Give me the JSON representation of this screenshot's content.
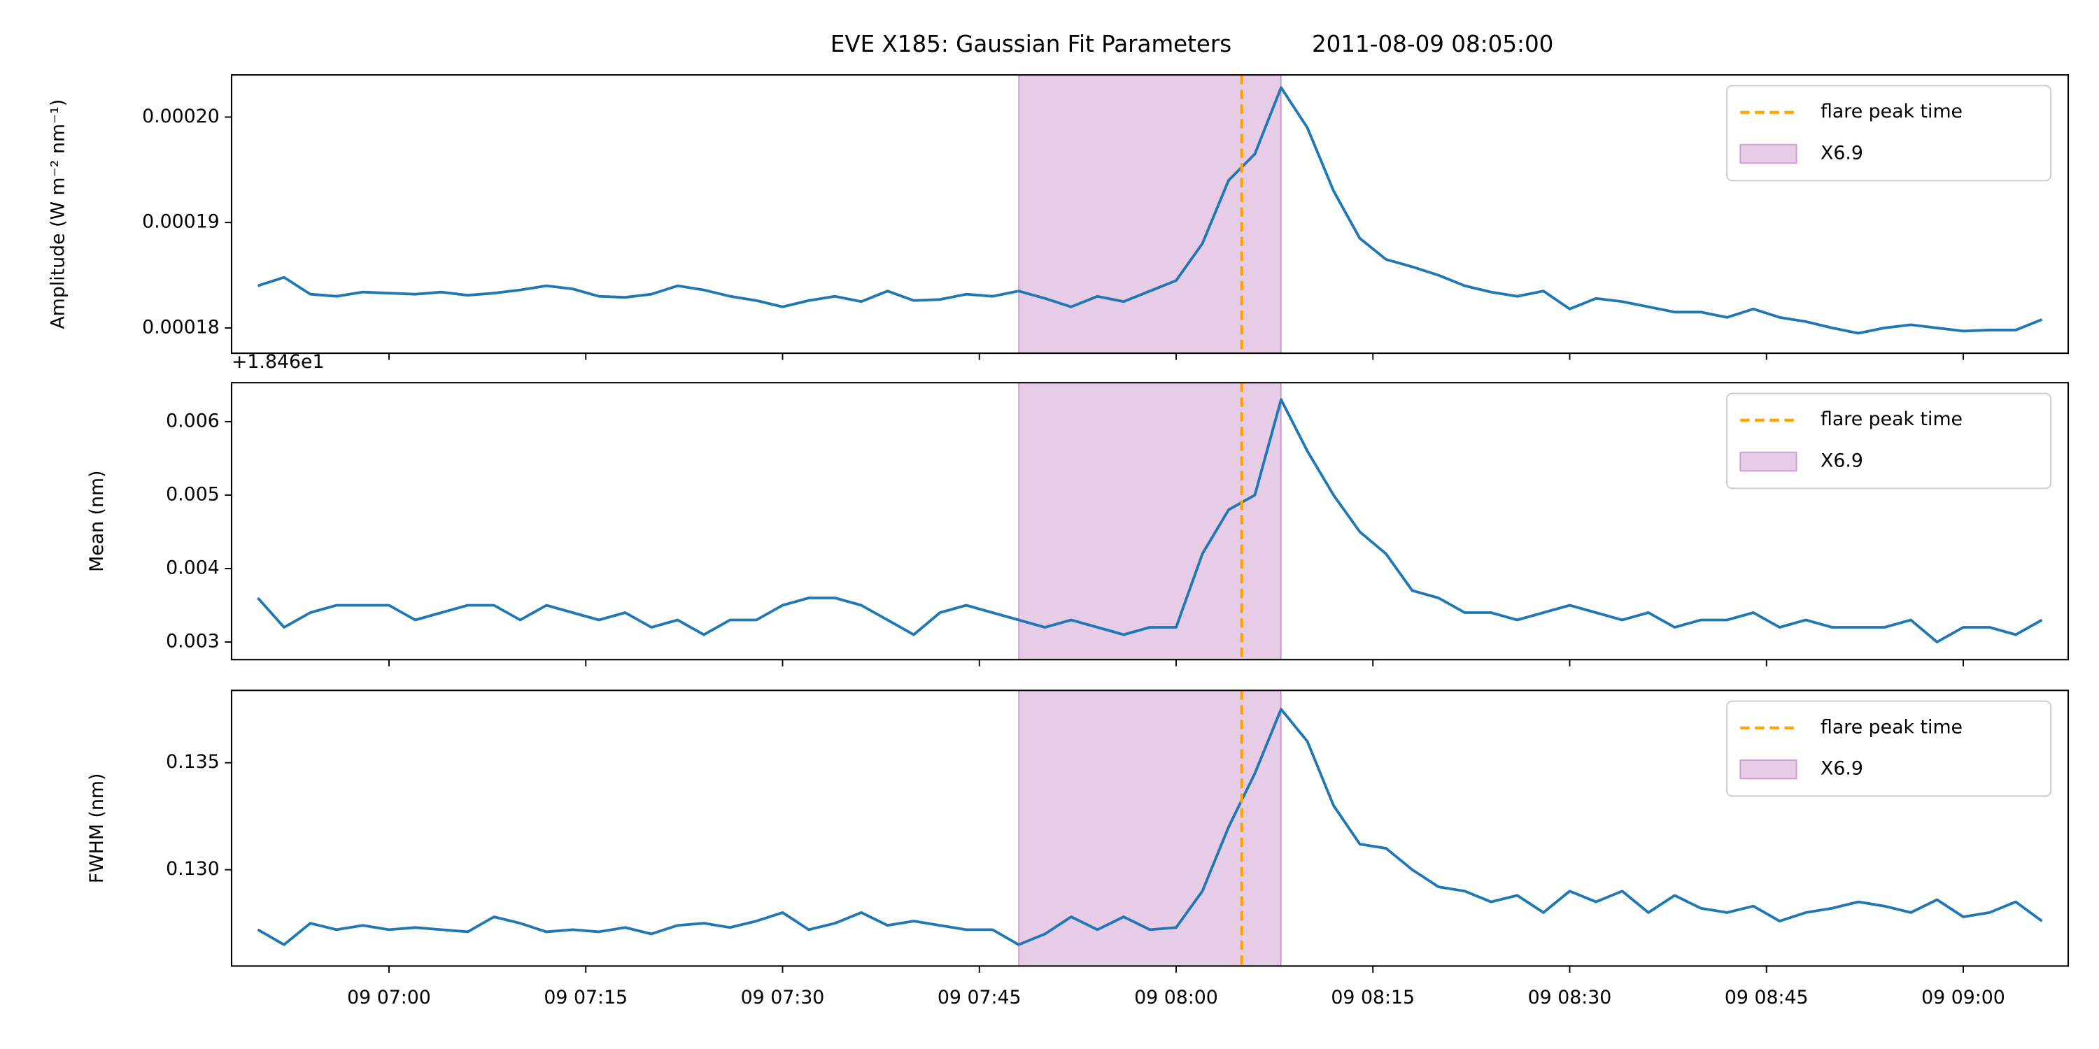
{
  "chart_data": [
    {
      "type": "line",
      "title": "EVE X185: Gaussian Fit Parameters",
      "subtitle": "2011-08-09 08:05:00",
      "ylabel": "Amplitude (W m⁻² nm⁻¹)",
      "x": [
        "09 06:50",
        "09 06:52",
        "09 06:54",
        "09 06:56",
        "09 06:58",
        "09 07:00",
        "09 07:02",
        "09 07:04",
        "09 07:06",
        "09 07:08",
        "09 07:10",
        "09 07:12",
        "09 07:14",
        "09 07:16",
        "09 07:18",
        "09 07:20",
        "09 07:22",
        "09 07:24",
        "09 07:26",
        "09 07:28",
        "09 07:30",
        "09 07:32",
        "09 07:34",
        "09 07:36",
        "09 07:38",
        "09 07:40",
        "09 07:42",
        "09 07:44",
        "09 07:46",
        "09 07:48",
        "09 07:50",
        "09 07:52",
        "09 07:54",
        "09 07:56",
        "09 07:58",
        "09 08:00",
        "09 08:02",
        "09 08:04",
        "09 08:06",
        "09 08:08",
        "09 08:10",
        "09 08:12",
        "09 08:14",
        "09 08:16",
        "09 08:18",
        "09 08:20",
        "09 08:22",
        "09 08:24",
        "09 08:26",
        "09 08:28",
        "09 08:30",
        "09 08:32",
        "09 08:34",
        "09 08:36",
        "09 08:38",
        "09 08:40",
        "09 08:42",
        "09 08:44",
        "09 08:46",
        "09 08:48",
        "09 08:50",
        "09 08:52",
        "09 08:54",
        "09 08:56",
        "09 08:58",
        "09 09:00",
        "09 09:02",
        "09 09:04",
        "09 09:06"
      ],
      "series": [
        {
          "color": "#1f77b4",
          "values": [
            0.000184,
            0.0001848,
            0.0001832,
            0.000183,
            0.0001834,
            0.0001833,
            0.0001832,
            0.0001834,
            0.0001831,
            0.0001833,
            0.0001836,
            0.000184,
            0.0001837,
            0.000183,
            0.0001829,
            0.0001832,
            0.000184,
            0.0001836,
            0.000183,
            0.0001826,
            0.000182,
            0.0001826,
            0.000183,
            0.0001825,
            0.0001835,
            0.0001826,
            0.0001827,
            0.0001832,
            0.000183,
            0.0001835,
            0.0001828,
            0.000182,
            0.000183,
            0.0001825,
            0.0001835,
            0.0001845,
            0.000188,
            0.000194,
            0.0001965,
            0.0002028,
            0.000199,
            0.000193,
            0.0001885,
            0.0001865,
            0.0001858,
            0.000185,
            0.000184,
            0.0001834,
            0.000183,
            0.0001835,
            0.0001818,
            0.0001828,
            0.0001825,
            0.000182,
            0.0001815,
            0.0001815,
            0.000181,
            0.0001818,
            0.000181,
            0.0001806,
            0.00018,
            0.0001795,
            0.00018,
            0.0001803,
            0.00018,
            0.0001797,
            0.0001798,
            0.0001798,
            0.0001808
          ]
        }
      ],
      "vline": {
        "x": "09 08:05",
        "label": "flare peak time",
        "color": "orange"
      },
      "span": {
        "start": "09 07:48",
        "end": "09 08:08",
        "label": "X6.9",
        "color": "purple",
        "alpha": 0.2
      },
      "xlim": [
        "09 06:48",
        "09 09:08"
      ],
      "ylim": [
        0.0001776,
        0.000204
      ],
      "yticks": [
        0.00018,
        0.00019,
        {
          "value": 0.0002,
          "label": "0.00020"
        }
      ],
      "legend": "upper right"
    },
    {
      "type": "line",
      "ylabel": "Mean (nm)",
      "offset_label": "+1.846e1",
      "x": [
        "09 06:50",
        "09 06:52",
        "09 06:54",
        "09 06:56",
        "09 06:58",
        "09 07:00",
        "09 07:02",
        "09 07:04",
        "09 07:06",
        "09 07:08",
        "09 07:10",
        "09 07:12",
        "09 07:14",
        "09 07:16",
        "09 07:18",
        "09 07:20",
        "09 07:22",
        "09 07:24",
        "09 07:26",
        "09 07:28",
        "09 07:30",
        "09 07:32",
        "09 07:34",
        "09 07:36",
        "09 07:38",
        "09 07:40",
        "09 07:42",
        "09 07:44",
        "09 07:46",
        "09 07:48",
        "09 07:50",
        "09 07:52",
        "09 07:54",
        "09 07:56",
        "09 07:58",
        "09 08:00",
        "09 08:02",
        "09 08:04",
        "09 08:06",
        "09 08:08",
        "09 08:10",
        "09 08:12",
        "09 08:14",
        "09 08:16",
        "09 08:18",
        "09 08:20",
        "09 08:22",
        "09 08:24",
        "09 08:26",
        "09 08:28",
        "09 08:30",
        "09 08:32",
        "09 08:34",
        "09 08:36",
        "09 08:38",
        "09 08:40",
        "09 08:42",
        "09 08:44",
        "09 08:46",
        "09 08:48",
        "09 08:50",
        "09 08:52",
        "09 08:54",
        "09 08:56",
        "09 08:58",
        "09 09:00",
        "09 09:02",
        "09 09:04",
        "09 09:06"
      ],
      "series": [
        {
          "color": "#1f77b4",
          "values": [
            0.0036,
            0.0032,
            0.0034,
            0.0035,
            0.0035,
            0.0035,
            0.0033,
            0.0034,
            0.0035,
            0.0035,
            0.0033,
            0.0035,
            0.0034,
            0.0033,
            0.0034,
            0.0032,
            0.0033,
            0.0031,
            0.0033,
            0.0033,
            0.0035,
            0.0036,
            0.0036,
            0.0035,
            0.0033,
            0.0031,
            0.0034,
            0.0035,
            0.0034,
            0.0033,
            0.0032,
            0.0033,
            0.0032,
            0.0031,
            0.0032,
            0.0032,
            0.0042,
            0.0048,
            0.005,
            0.0063,
            0.0056,
            0.005,
            0.0045,
            0.0042,
            0.0037,
            0.0036,
            0.0034,
            0.0034,
            0.0033,
            0.0034,
            0.0035,
            0.0034,
            0.0033,
            0.0034,
            0.0032,
            0.0033,
            0.0033,
            0.0034,
            0.0032,
            0.0033,
            0.0032,
            0.0032,
            0.0032,
            0.0033,
            0.003,
            0.0032,
            0.0032,
            0.0031,
            0.0033
          ]
        }
      ],
      "vline": {
        "x": "09 08:05",
        "label": "flare peak time",
        "color": "orange"
      },
      "span": {
        "start": "09 07:48",
        "end": "09 08:08",
        "label": "X6.9",
        "color": "purple",
        "alpha": 0.2
      },
      "xlim": [
        "09 06:48",
        "09 09:08"
      ],
      "ylim": [
        0.00276,
        0.00653
      ],
      "yticks": [
        0.003,
        0.004,
        0.005,
        0.006
      ],
      "legend": "upper right"
    },
    {
      "type": "line",
      "ylabel": "FWHM (nm)",
      "x": [
        "09 06:50",
        "09 06:52",
        "09 06:54",
        "09 06:56",
        "09 06:58",
        "09 07:00",
        "09 07:02",
        "09 07:04",
        "09 07:06",
        "09 07:08",
        "09 07:10",
        "09 07:12",
        "09 07:14",
        "09 07:16",
        "09 07:18",
        "09 07:20",
        "09 07:22",
        "09 07:24",
        "09 07:26",
        "09 07:28",
        "09 07:30",
        "09 07:32",
        "09 07:34",
        "09 07:36",
        "09 07:38",
        "09 07:40",
        "09 07:42",
        "09 07:44",
        "09 07:46",
        "09 07:48",
        "09 07:50",
        "09 07:52",
        "09 07:54",
        "09 07:56",
        "09 07:58",
        "09 08:00",
        "09 08:02",
        "09 08:04",
        "09 08:06",
        "09 08:08",
        "09 08:10",
        "09 08:12",
        "09 08:14",
        "09 08:16",
        "09 08:18",
        "09 08:20",
        "09 08:22",
        "09 08:24",
        "09 08:26",
        "09 08:28",
        "09 08:30",
        "09 08:32",
        "09 08:34",
        "09 08:36",
        "09 08:38",
        "09 08:40",
        "09 08:42",
        "09 08:44",
        "09 08:46",
        "09 08:48",
        "09 08:50",
        "09 08:52",
        "09 08:54",
        "09 08:56",
        "09 08:58",
        "09 09:00",
        "09 09:02",
        "09 09:04",
        "09 09:06"
      ],
      "series": [
        {
          "color": "#1f77b4",
          "values": [
            0.1272,
            0.1265,
            0.1275,
            0.1272,
            0.1274,
            0.1272,
            0.1273,
            0.1272,
            0.1271,
            0.1278,
            0.1275,
            0.1271,
            0.1272,
            0.1271,
            0.1273,
            0.127,
            0.1274,
            0.1275,
            0.1273,
            0.1276,
            0.128,
            0.1272,
            0.1275,
            0.128,
            0.1274,
            0.1276,
            0.1274,
            0.1272,
            0.1272,
            0.1265,
            0.127,
            0.1278,
            0.1272,
            0.1278,
            0.1272,
            0.1273,
            0.129,
            0.132,
            0.1345,
            0.1375,
            0.136,
            0.133,
            0.1312,
            0.131,
            0.13,
            0.1292,
            0.129,
            0.1285,
            0.1288,
            0.128,
            0.129,
            0.1285,
            0.129,
            0.128,
            0.1288,
            0.1282,
            0.128,
            0.1283,
            0.1276,
            0.128,
            0.1282,
            0.1285,
            0.1283,
            0.128,
            0.1286,
            0.1278,
            0.128,
            0.1285,
            0.1276
          ]
        }
      ],
      "vline": {
        "x": "09 08:05",
        "label": "flare peak time",
        "color": "orange"
      },
      "span": {
        "start": "09 07:48",
        "end": "09 08:08",
        "label": "X6.9",
        "color": "purple",
        "alpha": 0.2
      },
      "xlim": [
        "09 06:48",
        "09 09:08"
      ],
      "ylim": [
        0.1255,
        0.13838
      ],
      "yticks": [
        {
          "value": 0.13,
          "label": "0.130"
        },
        {
          "value": 0.135,
          "label": "0.135"
        }
      ],
      "xticks": [
        "09 07:00",
        "09 07:15",
        "09 07:30",
        "09 07:45",
        "09 08:00",
        "09 08:15",
        "09 08:30",
        "09 08:45",
        "09 09:00"
      ],
      "legend": "upper right"
    }
  ]
}
